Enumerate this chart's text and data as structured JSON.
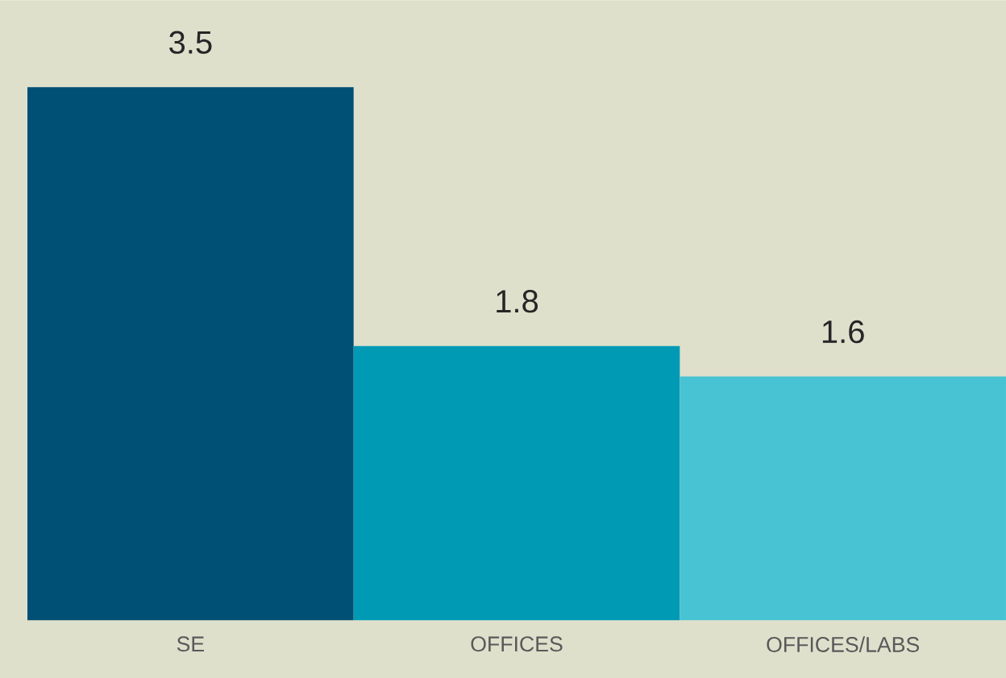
{
  "chart_data": {
    "type": "bar",
    "categories": [
      "SE",
      "OFFICES",
      "OFFICES/LABS"
    ],
    "values": [
      3.5,
      1.8,
      1.6
    ],
    "colors": [
      "#004f74",
      "#009ab5",
      "#48c3d3"
    ],
    "data_labels": true
  }
}
